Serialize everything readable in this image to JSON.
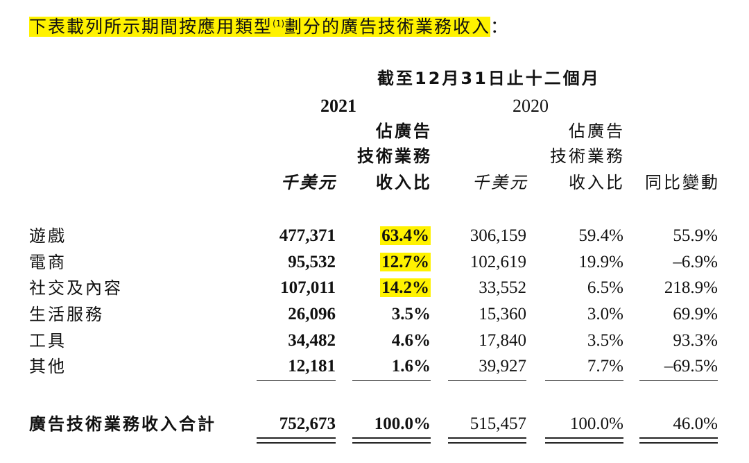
{
  "heading": {
    "text": "下表載列所示期間按應用類型",
    "sup": "(1)",
    "text2": "劃分的廣告技術業務收入",
    "colon": "："
  },
  "header": {
    "period": "截至12月31日止十二個月",
    "year_current": "2021",
    "year_prior": "2020",
    "col_amount": "千美元",
    "col_share_line1": "佔廣告",
    "col_share_line2": "技術業務",
    "col_share_line3": "收入比",
    "col_yoy": "同比變動"
  },
  "rows": [
    {
      "label": "遊戲",
      "amt2021": "477,371",
      "pct2021": "63.4%",
      "amt2020": "306,159",
      "pct2020": "59.4%",
      "yoy": "55.9%"
    },
    {
      "label": "電商",
      "amt2021": "95,532",
      "pct2021": "12.7%",
      "amt2020": "102,619",
      "pct2020": "19.9%",
      "yoy": "–6.9%"
    },
    {
      "label": "社交及內容",
      "amt2021": "107,011",
      "pct2021": "14.2%",
      "amt2020": "33,552",
      "pct2020": "6.5%",
      "yoy": "218.9%"
    },
    {
      "label": "生活服務",
      "amt2021": "26,096",
      "pct2021": "3.5%",
      "amt2020": "15,360",
      "pct2020": "3.0%",
      "yoy": "69.9%"
    },
    {
      "label": "工具",
      "amt2021": "34,482",
      "pct2021": "4.6%",
      "amt2020": "17,840",
      "pct2020": "3.5%",
      "yoy": "93.3%"
    },
    {
      "label": "其他",
      "amt2021": "12,181",
      "pct2021": "1.6%",
      "amt2020": "39,927",
      "pct2020": "7.7%",
      "yoy": "–69.5%"
    }
  ],
  "total": {
    "label": "廣告技術業務收入合計",
    "amt2021": "752,673",
    "pct2021": "100.0%",
    "amt2020": "515,457",
    "pct2020": "100.0%",
    "yoy": "46.0%"
  },
  "colors": {
    "highlight": "#fff200",
    "text": "#111111"
  }
}
